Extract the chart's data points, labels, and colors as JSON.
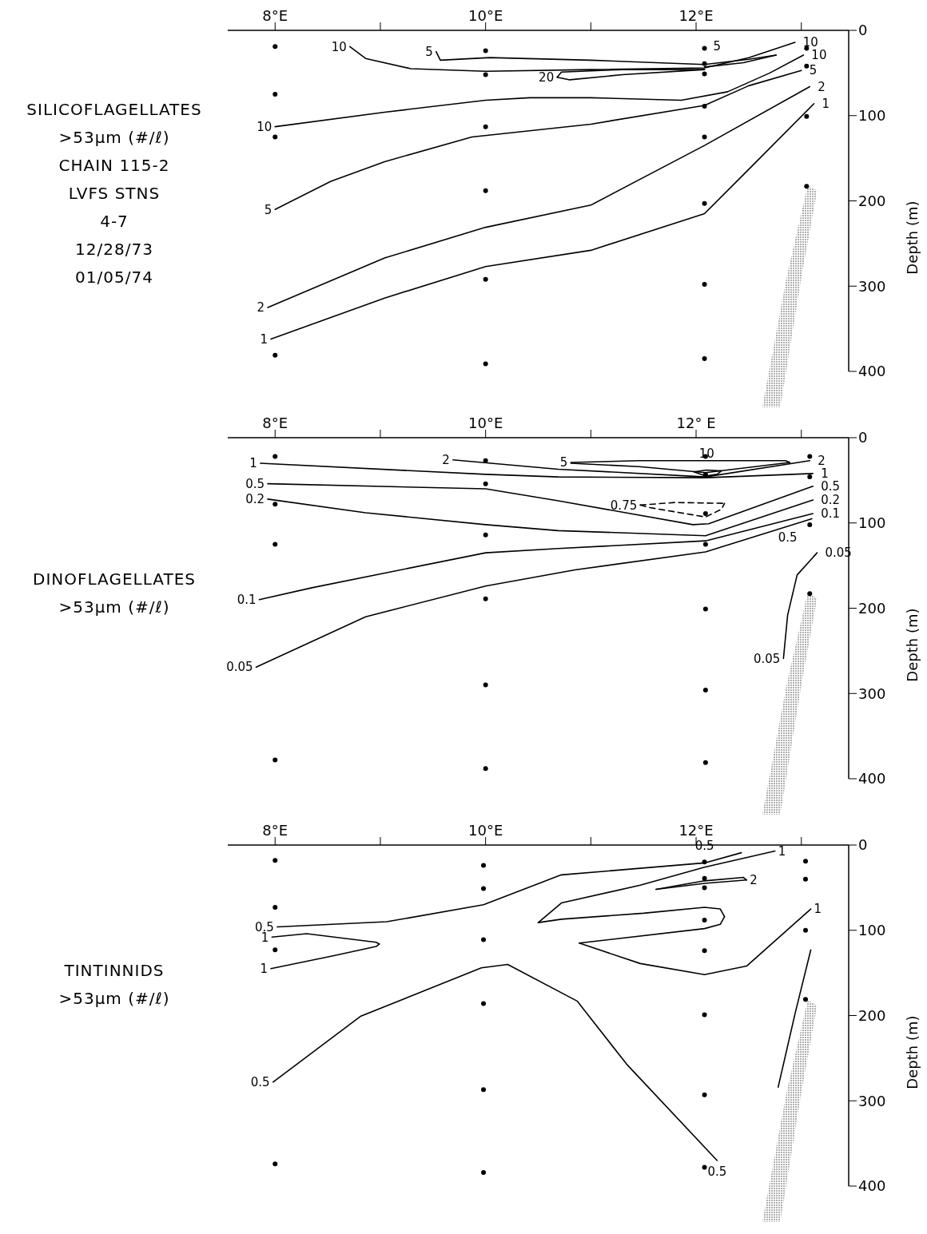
{
  "chart_data": [
    {
      "type": "line",
      "title": "SILICOFLAGELLATES",
      "subtitle": ">53μm (#/ℓ)",
      "ylabel": "Depth (m)",
      "xlim": [
        7.55,
        13.45
      ],
      "xticks": [
        {
          "value": 8,
          "label": "8°E"
        },
        {
          "value": 9,
          "label": null
        },
        {
          "value": 10,
          "label": "10°E"
        },
        {
          "value": 11,
          "label": null
        },
        {
          "value": 12,
          "label": "12°E"
        },
        {
          "value": 13,
          "label": null
        }
      ],
      "ylim": [
        400,
        0
      ],
      "yticks": [
        0,
        100,
        200,
        300,
        400
      ],
      "marker": "none",
      "line_style": "solid",
      "annotations": [
        "CHAIN 115-2",
        "LVFS STNS",
        "4-7",
        "12/28/73",
        "01/05/74",
        {
          "text": "5",
          "x": 12.2,
          "y": 38
        },
        {
          "text": "10",
          "x": 12.94,
          "y": 14
        },
        {
          "text": "10",
          "x": 13.02,
          "y": 29
        },
        {
          "text": "5",
          "x": 13,
          "y": 47
        },
        {
          "text": "2",
          "x": 13.08,
          "y": 66
        },
        {
          "text": "1",
          "x": 13.12,
          "y": 86
        }
      ],
      "series": [
        {
          "name": "10",
          "color": "#000000",
          "x": [
            8.71,
            8.86,
            9.29,
            10,
            11,
            12.08,
            12.5,
            12.94
          ],
          "values": [
            19,
            33,
            45,
            48,
            46,
            44,
            32,
            14
          ]
        },
        {
          "name": "5",
          "color": "#000000",
          "x": [
            9.53,
            9.57,
            10.04,
            11,
            12.08,
            12.5,
            12.76
          ],
          "values": [
            25,
            35,
            32,
            35,
            40,
            34,
            29
          ]
        },
        {
          "color": "#000000",
          "x": [
            12.08,
            12.45,
            12.76
          ],
          "values": [
            43,
            38,
            29
          ]
        },
        {
          "name": "20",
          "color": "#000000",
          "x": [
            10.68,
            10.72,
            11.3,
            12.08
          ],
          "values": [
            55,
            49,
            46,
            46
          ]
        },
        {
          "color": "#000000",
          "x": [
            10.68,
            10.8,
            11.3,
            12.08
          ],
          "values": [
            55,
            58,
            52,
            46
          ]
        },
        {
          "name": "10",
          "color": "#000000",
          "x": [
            8,
            9.04,
            10,
            10.42,
            11,
            11.86,
            12.3,
            12.7,
            13.02
          ],
          "values": [
            113,
            96,
            82,
            79,
            79,
            82,
            72,
            50,
            29
          ]
        },
        {
          "name": "5",
          "color": "#000000",
          "x": [
            8,
            8.53,
            9.04,
            9.87,
            11,
            12.08,
            12.5,
            13
          ],
          "values": [
            210,
            177,
            154,
            125,
            110,
            88,
            65,
            47
          ]
        },
        {
          "name": "2",
          "color": "#000000",
          "x": [
            7.93,
            9.04,
            10,
            11,
            12.08,
            13.08
          ],
          "values": [
            325,
            267,
            231,
            205,
            135,
            66
          ]
        },
        {
          "name": "1",
          "color": "#000000",
          "x": [
            7.96,
            9.04,
            10,
            11,
            12.08,
            12.46,
            13.12
          ],
          "values": [
            362,
            314,
            277,
            258,
            215,
            168,
            86
          ]
        },
        {
          "type": "scatter",
          "marker": "circle",
          "color": "#000000",
          "x": [
            8,
            8,
            8,
            8,
            10,
            10,
            10,
            10,
            10,
            10,
            12.08,
            12.08,
            12.08,
            12.08,
            12.08,
            12.08,
            12.08,
            12.08,
            13.05,
            13.05,
            13.05,
            13.05
          ],
          "values": [
            19,
            75,
            125,
            381,
            24,
            52,
            113,
            188,
            292,
            391,
            21,
            39,
            51,
            89,
            125,
            203,
            298,
            385,
            21,
            42,
            101,
            183
          ]
        }
      ]
    },
    {
      "type": "line",
      "title": "DINOFLAGELLATES",
      "subtitle": ">53μm (#/ℓ)",
      "ylabel": "Depth (m)",
      "xlim": [
        7.55,
        13.45
      ],
      "xticks": [
        {
          "value": 8,
          "label": "8°E"
        },
        {
          "value": 9,
          "label": null
        },
        {
          "value": 10,
          "label": "10°E"
        },
        {
          "value": 11,
          "label": null
        },
        {
          "value": 12,
          "label": "12° E"
        },
        {
          "value": 13,
          "label": null
        }
      ],
      "ylim": [
        400,
        0
      ],
      "yticks": [
        0,
        100,
        200,
        300,
        400
      ],
      "marker": "none",
      "line_style": "solid",
      "annotations": [
        {
          "text": "10",
          "x": 12.1,
          "y": 38
        },
        {
          "text": "2",
          "x": 13.08,
          "y": 27
        },
        {
          "text": "1",
          "x": 13.11,
          "y": 42
        },
        {
          "text": "0.5",
          "x": 13.11,
          "y": 57
        },
        {
          "text": "0.2",
          "x": 13.11,
          "y": 73
        },
        {
          "text": "0.1",
          "x": 13.11,
          "y": 89
        },
        {
          "text": "0.5",
          "x": 12.87,
          "y": 104
        },
        {
          "text": "0.05",
          "x": 13.15,
          "y": 135
        }
      ],
      "series": [
        {
          "name": "1",
          "color": "#000000",
          "x": [
            7.86,
            10,
            10.69,
            12.09,
            13.11
          ],
          "values": [
            30,
            43,
            46,
            47,
            42
          ]
        },
        {
          "name": "0.5",
          "color": "#000000",
          "x": [
            7.93,
            10,
            10.69,
            11.97,
            12.12,
            13.11
          ],
          "values": [
            54,
            60,
            74,
            102,
            101,
            57
          ]
        },
        {
          "name": "0.2",
          "color": "#000000",
          "x": [
            7.93,
            8.86,
            10,
            10.69,
            12.09,
            13.11
          ],
          "values": [
            72,
            88,
            102,
            109,
            115,
            73
          ]
        },
        {
          "name": "0.1",
          "color": "#000000",
          "x": [
            7.85,
            8.35,
            10,
            10.69,
            12.09,
            13.11
          ],
          "values": [
            190,
            176,
            135,
            130,
            121,
            89
          ]
        },
        {
          "name": "0.05",
          "color": "#000000",
          "x": [
            7.82,
            8.86,
            10,
            10.85,
            12.09,
            13.1
          ],
          "values": [
            269,
            210,
            174,
            155,
            134,
            95
          ]
        },
        {
          "name": "0.05",
          "color": "#000000",
          "x": [
            12.83,
            12.87,
            12.96,
            13.15
          ],
          "values": [
            259,
            208,
            161,
            135
          ]
        },
        {
          "name": "2",
          "color": "#000000",
          "x": [
            9.69,
            10.69,
            12.09,
            13.08
          ],
          "values": [
            26,
            37,
            46,
            27
          ]
        },
        {
          "name": "5",
          "color": "#000000",
          "x": [
            10.81,
            11.46,
            12.85,
            12.89
          ],
          "values": [
            29,
            27,
            27,
            29
          ]
        },
        {
          "color": "#000000",
          "x": [
            10.81,
            11.46,
            12.09,
            12.89
          ],
          "values": [
            30,
            34,
            41,
            29
          ]
        },
        {
          "color": "#000000",
          "x": [
            11.98,
            12.1,
            12.24
          ],
          "values": [
            40,
            38,
            39
          ]
        },
        {
          "color": "#000000",
          "x": [
            11.98,
            12.09,
            12.2,
            12.24
          ],
          "values": [
            40,
            45,
            43,
            39
          ]
        },
        {
          "name": "0.75",
          "color": "#000000",
          "line_style": "dashed",
          "x": [
            11.47,
            11.8,
            12.27
          ],
          "values": [
            79,
            76,
            77
          ]
        },
        {
          "color": "#000000",
          "line_style": "dashed",
          "x": [
            11.47,
            11.56,
            12.09,
            12.24,
            12.27
          ],
          "values": [
            79,
            82,
            93,
            84,
            77
          ]
        },
        {
          "type": "scatter",
          "marker": "circle",
          "color": "#000000",
          "x": [
            8,
            8,
            8,
            8,
            10,
            10,
            10,
            10,
            10,
            10,
            12.09,
            12.09,
            12.09,
            12.09,
            12.09,
            12.09,
            12.09,
            13.08,
            13.08,
            13.08,
            13.08
          ],
          "values": [
            22,
            78,
            125,
            378,
            27,
            54,
            114,
            189,
            290,
            388,
            22,
            43,
            89,
            125,
            201,
            296,
            381,
            22,
            46,
            102,
            183
          ]
        }
      ]
    },
    {
      "type": "line",
      "title": "TINTINNIDS",
      "subtitle": ">53μm (#/ℓ)",
      "ylabel": "Depth (m)",
      "xlim": [
        7.55,
        13.45
      ],
      "xticks": [
        {
          "value": 8,
          "label": "8°E"
        },
        {
          "value": 9,
          "label": null
        },
        {
          "value": 10,
          "label": "10°E"
        },
        {
          "value": 11,
          "label": null
        },
        {
          "value": 12,
          "label": "12°E"
        },
        {
          "value": 13,
          "label": null
        }
      ],
      "ylim": [
        400,
        0
      ],
      "yticks": [
        0,
        100,
        200,
        300,
        400
      ],
      "marker": "none",
      "line_style": "solid",
      "annotations": [
        {
          "text": "0.5",
          "x": 12.08,
          "y": 21
        },
        {
          "text": "0.5",
          "x": 12.2,
          "y": 370
        }
      ],
      "series": [
        {
          "name": "0.5",
          "color": "#000000",
          "x": [
            8.02,
            9.06,
            9.98,
            10.72,
            12.08,
            12.43
          ],
          "values": [
            96,
            90,
            70,
            35,
            21,
            9
          ]
        },
        {
          "name": "1",
          "color": "#000000",
          "x": [
            13.09,
            12.48,
            12.08,
            11.47,
            10.89
          ],
          "values": [
            75,
            142,
            152,
            139,
            115
          ]
        },
        {
          "color": "#000000",
          "x": [
            10.89,
            12.08,
            12.23,
            12.27
          ],
          "values": [
            115,
            98,
            93,
            84
          ]
        },
        {
          "color": "#000000",
          "x": [
            12.27,
            12.23,
            12.08,
            11.5,
            10.72,
            10.5
          ],
          "values": [
            84,
            75,
            73,
            80,
            87,
            91
          ]
        },
        {
          "name": "1",
          "color": "#000000",
          "x": [
            12.75,
            12.08,
            11.47,
            10.72,
            10.5
          ],
          "values": [
            7,
            26,
            47,
            68,
            91
          ]
        },
        {
          "name": "2",
          "color": "#000000",
          "x": [
            12.48,
            12.45,
            12.08,
            11.8,
            11.62
          ],
          "values": [
            41,
            38,
            42,
            48,
            52
          ]
        },
        {
          "color": "#000000",
          "x": [
            11.62,
            12.08,
            12.48
          ],
          "values": [
            52,
            45,
            41
          ]
        },
        {
          "name": "1",
          "color": "#000000",
          "x": [
            7.97,
            8.3,
            8.96,
            8.99
          ],
          "values": [
            108,
            104,
            114,
            116
          ]
        },
        {
          "name": "1",
          "color": "#000000",
          "x": [
            7.96,
            8.55,
            8.96,
            8.99
          ],
          "values": [
            145,
            130,
            119,
            116
          ]
        },
        {
          "name": "0.5",
          "color": "#000000",
          "x": [
            7.98,
            8.81,
            9.96,
            10.21,
            10.87,
            11.34,
            12.2
          ],
          "values": [
            278,
            201,
            144,
            140,
            183,
            257,
            370
          ]
        },
        {
          "color": "#000000",
          "x": [
            13.09,
            12.94,
            12.78
          ],
          "values": [
            123,
            198,
            284
          ]
        },
        {
          "type": "scatter",
          "marker": "circle",
          "color": "#000000",
          "x": [
            8,
            8,
            8,
            8,
            9.98,
            9.98,
            9.98,
            9.98,
            9.98,
            9.98,
            12.08,
            12.08,
            12.08,
            12.08,
            12.08,
            12.08,
            12.08,
            12.08,
            13.04,
            13.04,
            13.04,
            13.04
          ],
          "values": [
            18,
            73,
            123,
            374,
            24,
            51,
            111,
            186,
            287,
            384,
            20,
            39,
            50,
            88,
            124,
            199,
            293,
            378,
            19,
            40,
            100,
            181
          ]
        }
      ]
    }
  ]
}
